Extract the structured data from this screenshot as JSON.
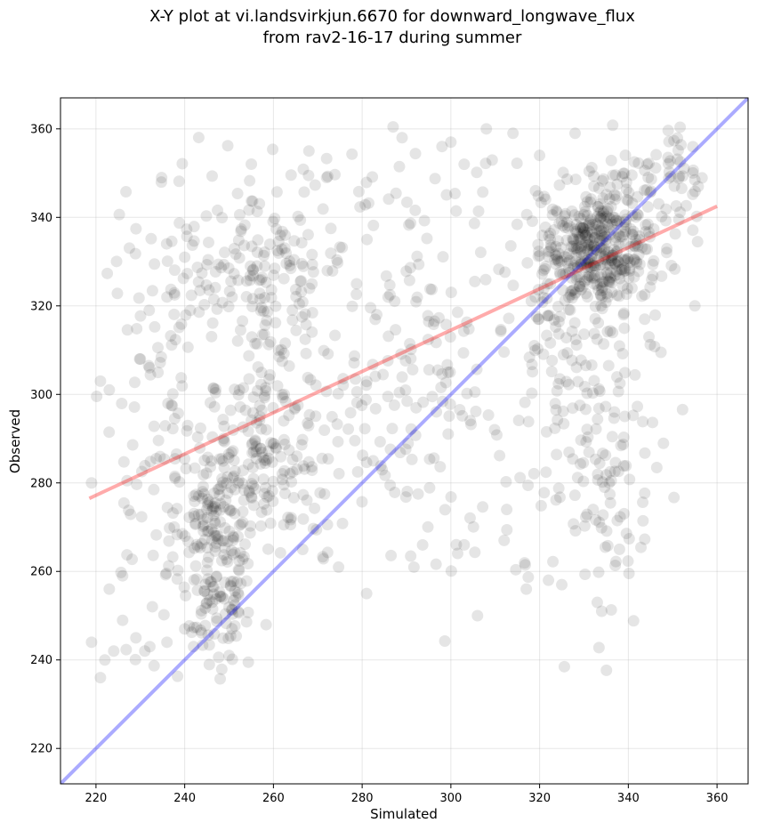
{
  "chart_data": {
    "type": "scatter",
    "title_lines": [
      "X-Y plot at vi.landsvirkjun.6670 for downward_longwave_flux",
      "from rav2-16-17 during summer"
    ],
    "xlabel": "Simulated",
    "ylabel": "Observed",
    "xlim": [
      212,
      367
    ],
    "ylim": [
      212,
      367
    ],
    "xticks": [
      220,
      240,
      260,
      280,
      300,
      320,
      340,
      360
    ],
    "yticks": [
      220,
      240,
      260,
      280,
      300,
      320,
      340,
      360
    ],
    "grid": true,
    "point_color": "#000000",
    "point_alpha": 0.1,
    "lines": [
      {
        "name": "one-to-one",
        "color": "#0000ff",
        "alpha": 0.33,
        "x": [
          212,
          367
        ],
        "y": [
          212,
          367
        ]
      },
      {
        "name": "regression",
        "color": "#ff0000",
        "alpha": 0.33,
        "x": [
          218.5,
          360
        ],
        "y": [
          276.5,
          342.5
        ]
      }
    ],
    "clusters": [
      {
        "cx": 247,
        "cy": 265,
        "sx": 4,
        "sy": 14,
        "n": 180
      },
      {
        "cx": 258,
        "cy": 285,
        "sx": 8,
        "sy": 14,
        "n": 180
      },
      {
        "cx": 255,
        "cy": 330,
        "sx": 11,
        "sy": 10,
        "n": 150
      },
      {
        "cx": 235,
        "cy": 290,
        "sx": 8,
        "sy": 25,
        "n": 110
      },
      {
        "cx": 280,
        "cy": 310,
        "sx": 14,
        "sy": 25,
        "n": 160
      },
      {
        "cx": 300,
        "cy": 310,
        "sx": 14,
        "sy": 28,
        "n": 110
      },
      {
        "cx": 333,
        "cy": 333,
        "sx": 6,
        "sy": 7,
        "n": 380
      },
      {
        "cx": 330,
        "cy": 305,
        "sx": 9,
        "sy": 22,
        "n": 170
      },
      {
        "cx": 350,
        "cy": 350,
        "sx": 7,
        "sy": 6,
        "n": 70
      },
      {
        "cx": 335,
        "cy": 272,
        "sx": 5,
        "sy": 12,
        "n": 50
      }
    ],
    "points": [
      [
        219,
        244
      ],
      [
        221,
        236
      ],
      [
        222,
        240
      ],
      [
        224,
        242
      ],
      [
        223,
        256
      ],
      [
        226,
        259
      ],
      [
        229,
        245
      ],
      [
        231,
        242
      ],
      [
        236,
        244
      ],
      [
        240,
        247
      ],
      [
        242,
        243
      ],
      [
        250,
        241
      ],
      [
        219,
        280
      ],
      [
        221,
        303
      ],
      [
        223,
        301
      ],
      [
        230,
        308
      ],
      [
        232,
        319
      ],
      [
        236,
        322
      ],
      [
        240,
        331
      ],
      [
        289,
        358
      ],
      [
        298,
        356
      ],
      [
        300,
        357
      ],
      [
        303,
        352
      ],
      [
        308,
        360
      ],
      [
        314,
        359
      ],
      [
        320,
        354
      ],
      [
        328,
        359
      ],
      [
        268,
        355
      ],
      [
        272,
        349
      ],
      [
        355,
        320
      ],
      [
        281,
        255
      ],
      [
        306,
        250
      ],
      [
        317,
        256
      ],
      [
        333,
        253
      ],
      [
        334,
        251
      ],
      [
        303,
        266
      ],
      [
        312,
        267
      ],
      [
        322,
        258
      ],
      [
        325,
        257
      ],
      [
        338,
        265
      ]
    ]
  }
}
